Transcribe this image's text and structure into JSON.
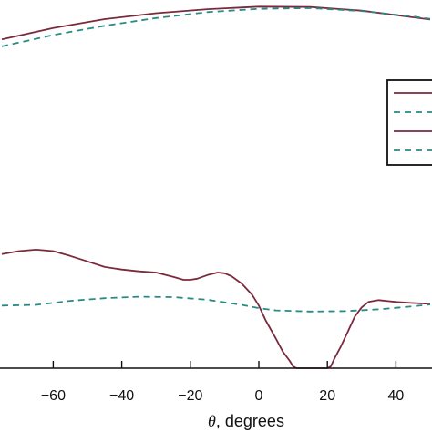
{
  "chart_data": {
    "type": "line",
    "xlabel_var": "θ",
    "xlabel_rest": ", degrees",
    "xlim": [
      -75,
      50
    ],
    "ylim": [
      0,
      1
    ],
    "grid": false,
    "legend_placement": "right",
    "x_ticks": [
      -60,
      -40,
      -20,
      0,
      20,
      40
    ],
    "x_tick_labels": [
      "−60",
      "−40",
      "−20",
      "0",
      "20",
      "40"
    ],
    "series": [
      {
        "style": "solid",
        "color": "#7a2a3d",
        "x": [
          -75,
          -60,
          -45,
          -30,
          -15,
          0,
          15,
          30,
          45,
          50
        ],
        "y": [
          0.893,
          0.924,
          0.948,
          0.964,
          0.975,
          0.982,
          0.981,
          0.971,
          0.953,
          0.947
        ]
      },
      {
        "style": "dashed",
        "color": "#2a8a85",
        "x": [
          -75,
          -60,
          -45,
          -30,
          -15,
          0,
          15,
          30,
          45,
          50
        ],
        "y": [
          0.874,
          0.905,
          0.93,
          0.951,
          0.967,
          0.976,
          0.978,
          0.97,
          0.955,
          0.949
        ]
      },
      {
        "style": "solid",
        "color": "#7a2a3d",
        "x": [
          -75,
          -70,
          -65,
          -60,
          -55,
          -50,
          -45,
          -40,
          -35,
          -30,
          -25,
          -22,
          -20,
          -18,
          -15,
          -12,
          -10,
          -8,
          -5,
          -2,
          0,
          2,
          5,
          7,
          9,
          10,
          11,
          12,
          16,
          20,
          21,
          22,
          24,
          26,
          28,
          30,
          32,
          35,
          38,
          40,
          45,
          50
        ],
        "y": [
          0.31,
          0.318,
          0.322,
          0.318,
          0.305,
          0.29,
          0.275,
          0.268,
          0.263,
          0.26,
          0.248,
          0.24,
          0.24,
          0.243,
          0.253,
          0.26,
          0.258,
          0.25,
          0.23,
          0.2,
          0.17,
          0.13,
          0.08,
          0.045,
          0.02,
          0.005,
          0.0,
          0.0,
          0.0,
          0.0,
          0.005,
          0.025,
          0.06,
          0.1,
          0.14,
          0.165,
          0.18,
          0.185,
          0.182,
          0.18,
          0.177,
          0.175
        ]
      },
      {
        "style": "dashed",
        "color": "#2a8a85",
        "x": [
          -75,
          -65,
          -55,
          -45,
          -35,
          -25,
          -15,
          -5,
          0,
          5,
          15,
          25,
          35,
          45,
          50
        ],
        "y": [
          0.17,
          0.172,
          0.183,
          0.19,
          0.194,
          0.193,
          0.186,
          0.172,
          0.163,
          0.157,
          0.154,
          0.155,
          0.16,
          0.168,
          0.173
        ]
      }
    ],
    "legend_entries": [
      {
        "style": "solid",
        "color": "#7a2a3d"
      },
      {
        "style": "dashed",
        "color": "#2a8a85"
      },
      {
        "style": "solid",
        "color": "#7a2a3d"
      },
      {
        "style": "dashed",
        "color": "#2a8a85"
      }
    ]
  }
}
